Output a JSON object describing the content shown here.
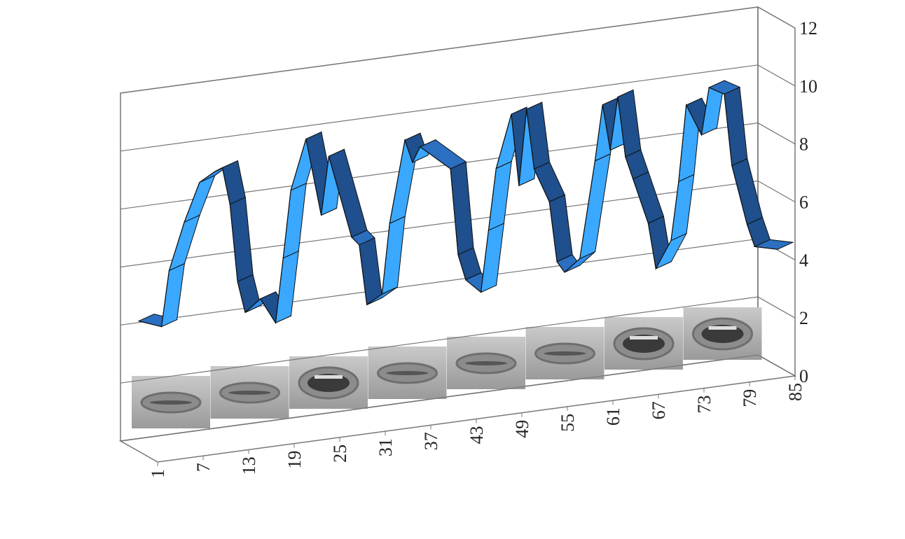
{
  "chart_data": {
    "type": "ribbon3d",
    "x": [
      1,
      4,
      5,
      7,
      9,
      11,
      12,
      13,
      14,
      15,
      17,
      19,
      20,
      21,
      23,
      25,
      26,
      29,
      30,
      31,
      33,
      34,
      36,
      37,
      38,
      42,
      43,
      44,
      46,
      47,
      48,
      50,
      51,
      52,
      53,
      55,
      56,
      57,
      59,
      61,
      62,
      63,
      64,
      65,
      66,
      68,
      69,
      71,
      72,
      73,
      75,
      76,
      78,
      79,
      81,
      82,
      85
    ],
    "values": [
      4.5,
      4.2,
      6.1,
      7.7,
      9.0,
      9.3,
      9.4,
      8.1,
      5.4,
      4.3,
      4.7,
      3.8,
      6.0,
      8.3,
      10.0,
      7.3,
      9.3,
      6.4,
      6.1,
      4.0,
      4.3,
      6.7,
      9.5,
      8.7,
      9.2,
      8.3,
      5.3,
      4.4,
      3.9,
      6.0,
      8.1,
      9.9,
      7.4,
      10.0,
      7.9,
      6.7,
      4.6,
      4.2,
      4.6,
      7.9,
      9.8,
      8.2,
      10.0,
      7.9,
      7.1,
      5.5,
      3.9,
      4.8,
      6.8,
      9.4,
      8.3,
      9.9,
      9.6,
      7.1,
      5.0,
      4.2,
      4.0
    ],
    "color": "#2a9df4",
    "xlim": [
      1,
      85
    ],
    "xticks": [
      1,
      7,
      13,
      19,
      25,
      31,
      37,
      43,
      49,
      55,
      61,
      67,
      73,
      79,
      85
    ],
    "ylim": [
      0,
      12
    ],
    "yticks": [
      0,
      2,
      4,
      6,
      8,
      10,
      12
    ],
    "grid": true
  }
}
